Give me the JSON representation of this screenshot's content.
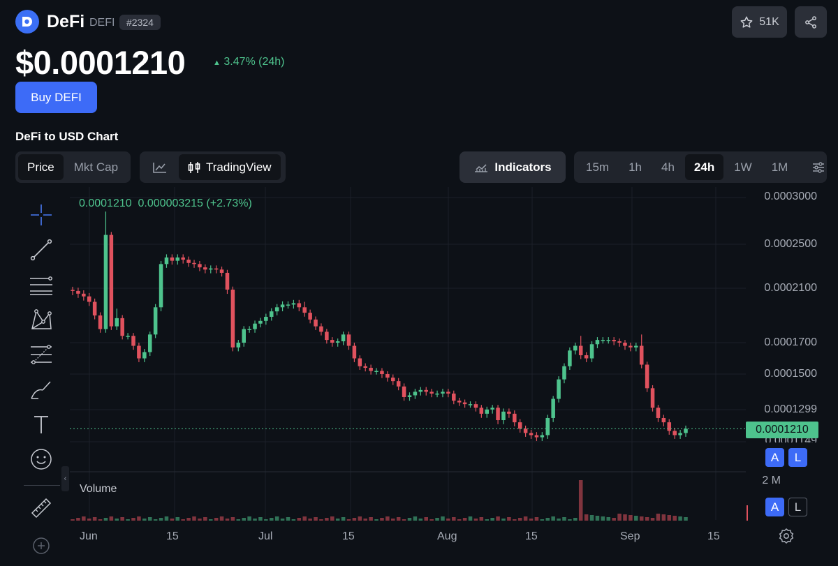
{
  "header": {
    "coin_name": "DeFi",
    "coin_symbol": "DEFI",
    "rank": "#2324",
    "watchlist_count": "51K",
    "price": "$0.0001210",
    "change": "3.47% (24h)",
    "buy_label": "Buy DEFI"
  },
  "chart_section": {
    "title": "DeFi to USD Chart",
    "metric_tabs": [
      {
        "label": "Price",
        "active": true
      },
      {
        "label": "Mkt Cap",
        "active": false
      }
    ],
    "tradingview_label": "TradingView",
    "indicators_label": "Indicators",
    "timeframes": [
      {
        "label": "15m",
        "active": false
      },
      {
        "label": "1h",
        "active": false
      },
      {
        "label": "4h",
        "active": false
      },
      {
        "label": "24h",
        "active": true
      },
      {
        "label": "1W",
        "active": false
      },
      {
        "label": "1M",
        "active": false
      }
    ],
    "legend": "0.0001210  0.000003215 (+2.73%)",
    "volume_label": "Volume",
    "current_price_tag": "0.0001210",
    "alert_label_a": "A",
    "alert_label_l": "L"
  },
  "colors": {
    "up": "#4ec38d",
    "down": "#e0525e",
    "accent": "#3d6bf7"
  },
  "chart_data": {
    "type": "candlestick",
    "y_ticks": [
      "0.0003000",
      "0.0002500",
      "0.0002100",
      "0.0001700",
      "0.0001500",
      "0.0001299",
      "0.0001149"
    ],
    "volume_ticks": [
      "2 M"
    ],
    "x_ticks": [
      "Jun",
      "15",
      "Jul",
      "15",
      "Aug",
      "15",
      "Sep",
      "15"
    ],
    "ylim": [
      0.000112,
      0.0003
    ],
    "close": [
      0.000208,
      0.000206,
      0.000204,
      0.0002,
      0.00019,
      0.00018,
      0.00026,
      0.000182,
      0.000188,
      0.000175,
      0.000175,
      0.000168,
      0.00016,
      0.000164,
      0.000176,
      0.000196,
      0.000232,
      0.000238,
      0.000235,
      0.000238,
      0.000236,
      0.000233,
      0.000232,
      0.000229,
      0.000227,
      0.000228,
      0.000227,
      0.000224,
      0.000209,
      0.000167,
      0.00017,
      0.00018,
      0.00018,
      0.000184,
      0.000186,
      0.000189,
      0.000193,
      0.000196,
      0.000198,
      0.000198,
      0.000199,
      0.000196,
      0.000192,
      0.000187,
      0.000182,
      0.000178,
      0.000172,
      0.00017,
      0.000171,
      0.000176,
      0.000168,
      0.00016,
      0.000155,
      0.000154,
      0.000152,
      0.000152,
      0.00015,
      0.000148,
      0.000146,
      0.000143,
      0.000137,
      0.000138,
      0.00014,
      0.000141,
      0.00014,
      0.000139,
      0.000139,
      0.00014,
      0.000139,
      0.000135,
      0.000134,
      0.000133,
      0.000133,
      0.000131,
      0.000128,
      0.00013,
      0.000131,
      0.000125,
      0.000129,
      0.000128,
      0.000124,
      0.000121,
      0.000119,
      0.000118,
      0.000117,
      0.000118,
      0.000126,
      0.000136,
      0.000147,
      0.000155,
      0.000165,
      0.000168,
      0.000162,
      0.00016,
      0.000169,
      0.000172,
      0.000172,
      0.000172,
      0.000171,
      0.00017,
      0.000168,
      0.000167,
      0.000168,
      0.000156,
      0.000142,
      0.000131,
      0.000126,
      0.000124,
      0.00012,
      0.000118,
      0.000119,
      0.000121
    ]
  }
}
